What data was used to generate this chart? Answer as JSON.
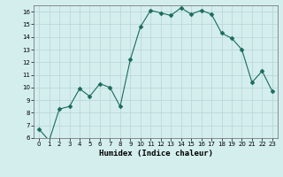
{
  "x": [
    0,
    1,
    2,
    3,
    4,
    5,
    6,
    7,
    8,
    9,
    10,
    11,
    12,
    13,
    14,
    15,
    16,
    17,
    18,
    19,
    20,
    21,
    22,
    23
  ],
  "y": [
    6.7,
    5.8,
    8.3,
    8.5,
    9.9,
    9.3,
    10.3,
    10.0,
    8.5,
    12.2,
    14.8,
    16.1,
    15.9,
    15.7,
    16.3,
    15.8,
    16.1,
    15.8,
    14.3,
    13.9,
    13.0,
    10.4,
    11.3,
    9.7
  ],
  "line_color": "#1a6b5a",
  "marker": "D",
  "marker_size": 2.5,
  "bg_color": "#d4eeee",
  "grid_color": "#b8d4d4",
  "xlabel": "Humidex (Indice chaleur)",
  "xlim": [
    -0.5,
    23.5
  ],
  "ylim": [
    6,
    16.5
  ],
  "yticks": [
    6,
    7,
    8,
    9,
    10,
    11,
    12,
    13,
    14,
    15,
    16
  ],
  "xticks": [
    0,
    1,
    2,
    3,
    4,
    5,
    6,
    7,
    8,
    9,
    10,
    11,
    12,
    13,
    14,
    15,
    16,
    17,
    18,
    19,
    20,
    21,
    22,
    23
  ]
}
